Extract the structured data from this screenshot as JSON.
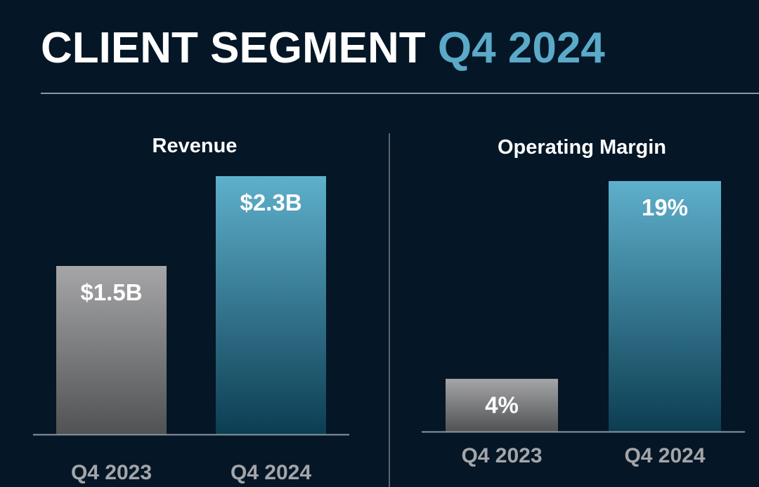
{
  "title": {
    "main": "CLIENT SEGMENT",
    "accent": "Q4 2024"
  },
  "colors": {
    "background": "#051626",
    "accent": "#5aaac8",
    "bar_prior_top": "#a6a6a8",
    "bar_prior_bottom": "#505254",
    "bar_current_top": "#5eb0cc",
    "bar_current_bottom": "#0c3d52"
  },
  "chart_data": [
    {
      "type": "bar",
      "title": "Revenue",
      "categories": [
        "Q4 2023",
        "Q4 2024"
      ],
      "values": [
        1.5,
        2.3
      ],
      "labels": [
        "$1.5B",
        "$2.3B"
      ],
      "unit": "$B",
      "ylim": [
        0,
        2.3
      ],
      "grid": false
    },
    {
      "type": "bar",
      "title": "Operating Margin",
      "categories": [
        "Q4 2023",
        "Q4 2024"
      ],
      "values": [
        4,
        19
      ],
      "labels": [
        "4%",
        "19%"
      ],
      "unit": "%",
      "ylim": [
        0,
        19
      ],
      "grid": false
    }
  ]
}
